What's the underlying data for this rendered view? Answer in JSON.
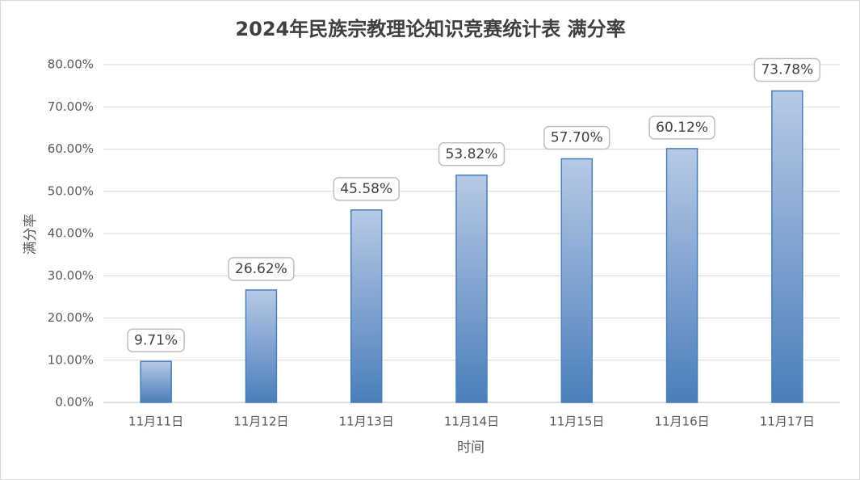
{
  "chart_data": {
    "type": "bar",
    "title": "2024年民族宗教理论知识竞赛统计表 满分率",
    "x_label": "时间",
    "y_label": "满分率",
    "categories": [
      "11月11日",
      "11月12日",
      "11月13日",
      "11月14日",
      "11月15日",
      "11月16日",
      "11月17日"
    ],
    "values": [
      9.71,
      26.62,
      45.58,
      53.82,
      57.7,
      60.12,
      73.78
    ],
    "value_labels": [
      "9.71%",
      "26.62%",
      "45.58%",
      "53.82%",
      "57.70%",
      "60.12%",
      "73.78%"
    ],
    "color": "#4a7ebb",
    "ylim": [
      0,
      80
    ],
    "yticks": [
      {
        "value": 0,
        "label": "0.00%"
      },
      {
        "value": 10,
        "label": "10.00%"
      },
      {
        "value": 20,
        "label": "20.00%"
      },
      {
        "value": 30,
        "label": "30.00%"
      },
      {
        "value": 40,
        "label": "40.00%"
      },
      {
        "value": 50,
        "label": "50.00%"
      },
      {
        "value": 60,
        "label": "60.00%"
      },
      {
        "value": 70,
        "label": "70.00%"
      },
      {
        "value": 80,
        "label": "80.00%"
      }
    ],
    "grid": true
  }
}
